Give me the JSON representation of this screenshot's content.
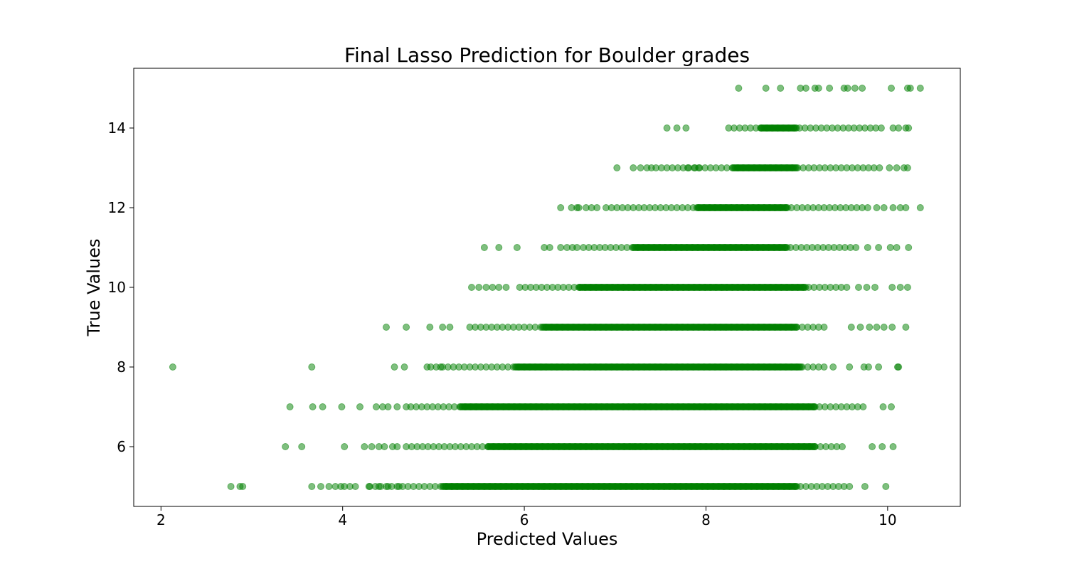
{
  "chart_data": {
    "type": "scatter",
    "title": "Final Lasso Prediction for Boulder grades",
    "xlabel": "Predicted Values",
    "ylabel": "True Values",
    "xlim": [
      1.7,
      10.8
    ],
    "ylim": [
      4.5,
      15.5
    ],
    "x_ticks": [
      2,
      4,
      6,
      8,
      10
    ],
    "y_ticks": [
      6,
      8,
      10,
      12,
      14
    ],
    "x_tick_labels": [
      "2",
      "4",
      "6",
      "8",
      "10"
    ],
    "y_tick_labels": [
      "6",
      "8",
      "10",
      "12",
      "14"
    ],
    "grid": false,
    "legend": "none",
    "marker_color": "#008000",
    "marker_alpha": 0.5,
    "rows": [
      {
        "y": 5,
        "dense_range": [
          5.1,
          9.0
        ],
        "sparse_range": [
          4.3,
          9.6
        ],
        "outliers": [
          2.77,
          2.87,
          2.9,
          3.66,
          3.76,
          3.85,
          3.92,
          3.98,
          4.02,
          4.08,
          4.14,
          4.29,
          4.4,
          4.5,
          4.62,
          9.75,
          9.98
        ]
      },
      {
        "y": 6,
        "dense_range": [
          5.6,
          9.2
        ],
        "sparse_range": [
          4.7,
          9.55
        ],
        "outliers": [
          3.37,
          3.55,
          4.02,
          4.24,
          4.32,
          4.4,
          4.46,
          4.55,
          4.6,
          9.83,
          9.94,
          10.06
        ]
      },
      {
        "y": 7,
        "dense_range": [
          5.3,
          9.2
        ],
        "sparse_range": [
          4.75,
          9.75
        ],
        "outliers": [
          3.42,
          3.67,
          3.78,
          3.99,
          4.19,
          4.37,
          4.44,
          4.5,
          4.6,
          4.7,
          9.95,
          10.04
        ]
      },
      {
        "y": 8,
        "dense_range": [
          5.9,
          9.05
        ],
        "sparse_range": [
          5.1,
          9.3
        ],
        "outliers": [
          2.13,
          3.66,
          4.57,
          4.68,
          4.93,
          4.97,
          5.03,
          5.08,
          9.4,
          9.58,
          9.74,
          9.79,
          9.9,
          10.11,
          10.12
        ]
      },
      {
        "y": 9,
        "dense_range": [
          6.2,
          9.0
        ],
        "sparse_range": [
          5.4,
          9.3
        ],
        "outliers": [
          4.48,
          4.7,
          4.96,
          5.1,
          5.18,
          9.6,
          9.7,
          9.8,
          9.88,
          9.96,
          10.05,
          10.2
        ]
      },
      {
        "y": 10,
        "dense_range": [
          6.6,
          9.1
        ],
        "sparse_range": [
          5.95,
          9.6
        ],
        "outliers": [
          5.42,
          5.5,
          5.58,
          5.65,
          5.72,
          5.8,
          9.68,
          9.77,
          9.86,
          10.05,
          10.14,
          10.22
        ]
      },
      {
        "y": 11,
        "dense_range": [
          7.2,
          8.9
        ],
        "sparse_range": [
          6.65,
          9.7
        ],
        "outliers": [
          5.56,
          5.72,
          5.92,
          6.22,
          6.28,
          6.4,
          6.47,
          6.53,
          6.58,
          9.78,
          9.9,
          10.03,
          10.1,
          10.23
        ]
      },
      {
        "y": 12,
        "dense_range": [
          7.9,
          8.9
        ],
        "sparse_range": [
          6.9,
          9.8
        ],
        "outliers": [
          6.4,
          6.52,
          6.58,
          6.6,
          6.68,
          6.74,
          6.8,
          9.88,
          9.96,
          10.06,
          10.14,
          10.2,
          10.36
        ]
      },
      {
        "y": 13,
        "dense_range": [
          8.3,
          9.0
        ],
        "sparse_range": [
          7.45,
          9.95
        ],
        "outliers": [
          7.02,
          7.2,
          7.28,
          7.35,
          7.4,
          7.8,
          7.88,
          7.92,
          10.02,
          10.1,
          10.18,
          10.22
        ]
      },
      {
        "y": 14,
        "dense_range": [
          8.6,
          9.0
        ],
        "sparse_range": [
          8.25,
          9.95
        ],
        "outliers": [
          7.57,
          7.68,
          7.78,
          10.06,
          10.12,
          10.2,
          10.23
        ]
      },
      {
        "y": 15,
        "dense_range": [],
        "sparse_range": [],
        "outliers": [
          8.36,
          8.66,
          8.82,
          9.04,
          9.1,
          9.2,
          9.24,
          9.36,
          9.52,
          9.56,
          9.64,
          9.72,
          10.04,
          10.22,
          10.25,
          10.36
        ]
      }
    ]
  }
}
